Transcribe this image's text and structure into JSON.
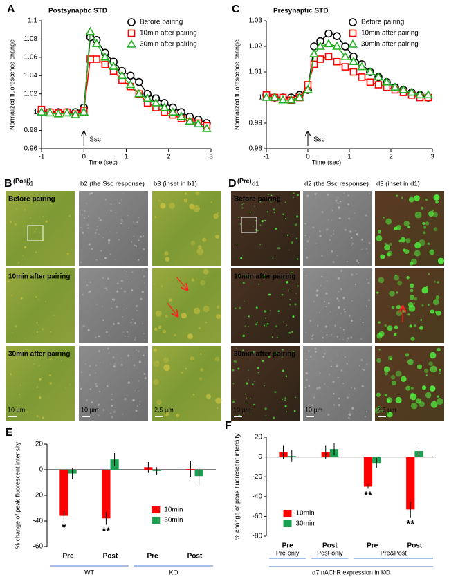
{
  "chart_data": [
    {
      "type": "line",
      "label": "A",
      "title": "Postsynaptic STD",
      "ylabel": "Normalized fluorescence change",
      "xlabel": "Time (sec)",
      "annotation": "Ssc",
      "x": [
        -1,
        -0.8,
        -0.6,
        -0.4,
        -0.2,
        0,
        0.15,
        0.3,
        0.5,
        0.7,
        0.9,
        1.1,
        1.3,
        1.5,
        1.7,
        1.9,
        2.1,
        2.3,
        2.5,
        2.7,
        2.9
      ],
      "xlim": [
        -1,
        3
      ],
      "xticks": [
        -1,
        0,
        1,
        2,
        3
      ],
      "ylim": [
        0.96,
        1.1
      ],
      "yticks": [
        0.96,
        0.98,
        1,
        1.02,
        1.04,
        1.06,
        1.08,
        1.1
      ],
      "legend": "upper-right",
      "series": [
        {
          "name": "Before pairing",
          "color": "#000000",
          "marker": "circle",
          "values": [
            1,
            1,
            1,
            1,
            1,
            1.005,
            1.082,
            1.079,
            1.065,
            1.055,
            1.045,
            1.04,
            1.033,
            1.02,
            1.015,
            1.01,
            1.005,
            1,
            0.995,
            0.992,
            0.988
          ]
        },
        {
          "name": "10min after pairing",
          "color": "#ff0000",
          "marker": "square",
          "values": [
            1.003,
            1,
            0.999,
            1,
            0.998,
            1.002,
            1.058,
            1.058,
            1.052,
            1.045,
            1.035,
            1.028,
            1.02,
            1.01,
            1.005,
            1,
            0.997,
            0.993,
            0.99,
            0.988,
            0.985
          ]
        },
        {
          "name": "30min after pairing",
          "color": "#22b022",
          "marker": "triangle",
          "values": [
            1,
            0.999,
            0.998,
            0.999,
            0.997,
            1,
            1.088,
            1.075,
            1.06,
            1.05,
            1.04,
            1.03,
            1.02,
            1.015,
            1.01,
            1.005,
            1,
            0.995,
            0.99,
            0.987,
            0.982
          ]
        }
      ]
    },
    {
      "type": "line",
      "label": "C",
      "title": "Presynaptic STD",
      "ylabel": "Normalized fluorescence change",
      "xlabel": "Time (sec)",
      "annotation": "Ssc",
      "x": [
        -1,
        -0.8,
        -0.6,
        -0.4,
        -0.2,
        0,
        0.15,
        0.3,
        0.5,
        0.7,
        0.9,
        1.1,
        1.3,
        1.5,
        1.7,
        1.9,
        2.1,
        2.3,
        2.5,
        2.7,
        2.9
      ],
      "xlim": [
        -1,
        3
      ],
      "xticks": [
        -1,
        0,
        1,
        2,
        3
      ],
      "ylim": [
        0.98,
        1.03
      ],
      "yticks": [
        0.98,
        0.99,
        1,
        1.01,
        1.02,
        1.03
      ],
      "legend": "upper-right",
      "series": [
        {
          "name": "Before pairing",
          "color": "#000000",
          "marker": "circle",
          "values": [
            1.001,
            1,
            1,
            1,
            1.001,
            1.003,
            1.02,
            1.022,
            1.025,
            1.024,
            1.02,
            1.016,
            1.013,
            1.01,
            1.008,
            1.006,
            1.004,
            1.003,
            1.002,
            1.001,
            1
          ]
        },
        {
          "name": "10min after pairing",
          "color": "#ff0000",
          "marker": "square",
          "values": [
            1.001,
            1,
            1,
            0.999,
            1,
            1.005,
            1.013,
            1.015,
            1.016,
            1.014,
            1.012,
            1.01,
            1.008,
            1.006,
            1.005,
            1.004,
            1.003,
            1.002,
            1.001,
            1,
            1
          ]
        },
        {
          "name": "30min after pairing",
          "color": "#22b022",
          "marker": "triangle",
          "values": [
            1,
            1,
            0.999,
            0.999,
            1,
            1.003,
            1.017,
            1.02,
            1.021,
            1.02,
            1.016,
            1.014,
            1.012,
            1.01,
            1.008,
            1.006,
            1.004,
            1.003,
            1.002,
            1.001,
            1.001
          ]
        }
      ]
    },
    {
      "type": "bar",
      "label": "E",
      "ylabel": "% change of peak fluorescent intensity",
      "categories": [
        "Pre",
        "Post",
        "Pre",
        "Post"
      ],
      "groups": [
        "WT",
        "KO"
      ],
      "annotations": [
        "*",
        "**"
      ],
      "ylim": [
        -60,
        20
      ],
      "yticks": [
        -60,
        -40,
        -20,
        0,
        20
      ],
      "legend": "center-right",
      "series": [
        {
          "name": "10min",
          "color": "#ff0000",
          "values": [
            -36,
            -38,
            2,
            0.5
          ],
          "errors": [
            4,
            5,
            4,
            6
          ]
        },
        {
          "name": "30min",
          "color": "#1aa050",
          "values": [
            -3,
            8,
            -1,
            -5
          ],
          "errors": [
            4,
            5,
            3,
            7
          ]
        }
      ]
    },
    {
      "type": "bar",
      "label": "F",
      "ylabel": "% change of peak fluorescent intensity",
      "xlabel": "α7 nAChR expression in KO",
      "categories": [
        "Pre",
        "Post",
        "Pre",
        "Post"
      ],
      "groups": [
        "Pre-only",
        "Post-only",
        "Pre&Post"
      ],
      "annotations": [
        "**",
        "**"
      ],
      "ylim": [
        -80,
        20
      ],
      "yticks": [
        -80,
        -60,
        -40,
        -20,
        0,
        20
      ],
      "legend": "center-left",
      "series": [
        {
          "name": "10min",
          "color": "#ff0000",
          "values": [
            5,
            5,
            -30,
            -53
          ],
          "errors": [
            7,
            7,
            2,
            8
          ]
        },
        {
          "name": "30min",
          "color": "#1aa050",
          "values": [
            1,
            8,
            -6,
            6
          ],
          "errors": [
            6,
            6,
            5,
            8
          ]
        }
      ]
    }
  ],
  "image_panels": [
    {
      "label": "B",
      "subtitle": "(Post)",
      "columns": [
        "b1",
        "b2 (the Ssc response)",
        "b3 (inset in b1)"
      ],
      "rows": [
        "Before pairing",
        "10min after pairing",
        "30min after pairing"
      ],
      "scale_bars": [
        "10 µm",
        "10 µm",
        "2.5 µm"
      ]
    },
    {
      "label": "D",
      "subtitle": "(Pre)",
      "columns": [
        "d1",
        "d2 (the Ssc response)",
        "d3 (inset in d1)"
      ],
      "rows": [
        "Before pairing",
        "10min after pairing",
        "30min after pairing"
      ],
      "scale_bars": [
        "10 µm",
        "10 µm",
        "2.5 µm"
      ]
    }
  ]
}
